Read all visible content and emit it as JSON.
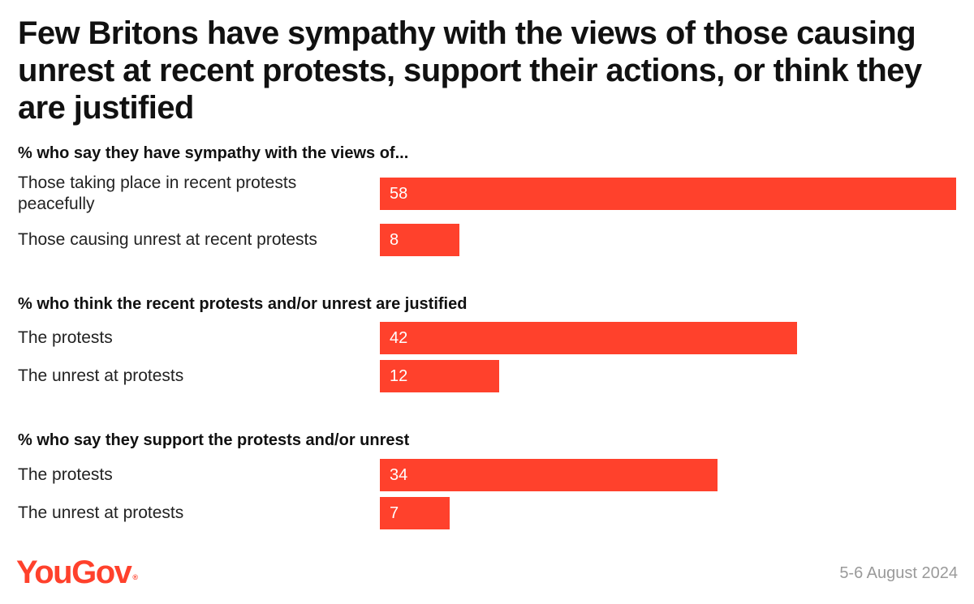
{
  "chart_data": {
    "type": "bar",
    "orientation": "horizontal",
    "title": "Few Britons have sympathy with the views of those causing unrest at recent protests, support their actions, or think they are justified",
    "xlim": [
      0,
      58
    ],
    "groups": [
      {
        "heading": "% who say they have sympathy with the views of...",
        "categories": [
          "Those taking place in recent protests peacefully",
          "Those causing unrest at recent protests"
        ],
        "values": [
          58,
          8
        ]
      },
      {
        "heading": "% who think the recent protests and/or unrest are justified",
        "categories": [
          "The protests",
          "The unrest at protests"
        ],
        "values": [
          42,
          12
        ]
      },
      {
        "heading": "% who say they support the protests and/or unrest",
        "categories": [
          "The protests",
          "The unrest at protests"
        ],
        "values": [
          34,
          7
        ]
      }
    ],
    "bar_color": "#ff412c",
    "value_label_color": "#ffffff"
  },
  "footer": {
    "logo_text": "YouGov",
    "logo_mark": "®",
    "logo_color": "#ff412c",
    "date": "5-6 August 2024"
  }
}
